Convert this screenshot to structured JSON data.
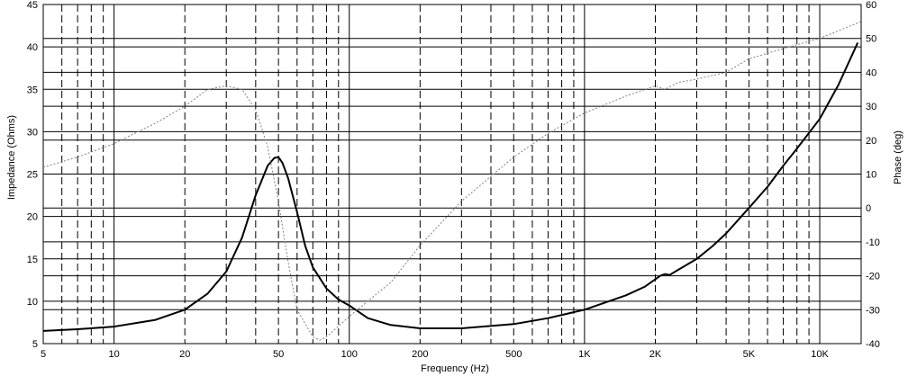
{
  "chart_data": {
    "type": "line",
    "title": "",
    "xlabel": "Frequency (Hz)",
    "ylabel": "Impedance (Ohms)",
    "y2label": "Phase (deg)",
    "x_scale": "log",
    "xlim": [
      5,
      15000
    ],
    "ylim": [
      5,
      45
    ],
    "y2lim": [
      -40,
      60
    ],
    "grid": true,
    "x_tick_labels": [
      "5",
      "10",
      "20",
      "50",
      "100",
      "200",
      "500",
      "1K",
      "2K",
      "5K",
      "10K"
    ],
    "x_ticks": [
      5,
      10,
      20,
      50,
      100,
      200,
      500,
      1000,
      2000,
      5000,
      10000
    ],
    "y_ticks": [
      5,
      10,
      15,
      20,
      25,
      30,
      35,
      40,
      45
    ],
    "y2_ticks": [
      -40,
      -30,
      -20,
      -10,
      0,
      10,
      20,
      30,
      40,
      50,
      60
    ],
    "series": [
      {
        "axis": "left",
        "style": "solid",
        "color": "#000000",
        "x": [
          5,
          7,
          10,
          15,
          20,
          25,
          30,
          35,
          40,
          45,
          48,
          50,
          52,
          55,
          60,
          65,
          70,
          80,
          90,
          100,
          120,
          150,
          200,
          300,
          500,
          700,
          1000,
          1500,
          1800,
          2100,
          2200,
          2300,
          2500,
          3000,
          3500,
          4000,
          5000,
          6000,
          7000,
          8000,
          10000,
          12000,
          14500
        ],
        "y": [
          6.5,
          6.7,
          7.0,
          7.8,
          9.0,
          10.9,
          13.5,
          17.5,
          22.5,
          26.0,
          26.9,
          27.0,
          26.3,
          24.5,
          20.5,
          16.5,
          14.0,
          11.5,
          10.2,
          9.5,
          8.0,
          7.2,
          6.8,
          6.8,
          7.3,
          8.0,
          9.0,
          10.7,
          11.7,
          13.0,
          13.2,
          13.1,
          13.7,
          15.0,
          16.5,
          18.0,
          21.0,
          23.5,
          26.0,
          28.0,
          31.5,
          35.5,
          40.5
        ]
      },
      {
        "axis": "right",
        "style": "dotted",
        "color": "#808080",
        "x": [
          5,
          7,
          10,
          15,
          20,
          25,
          30,
          35,
          40,
          45,
          50,
          55,
          60,
          70,
          75,
          80,
          100,
          150,
          200,
          300,
          500,
          700,
          1000,
          1500,
          2000,
          2200,
          2500,
          3000,
          4000,
          5000,
          7000,
          10000,
          15000
        ],
        "y": [
          12,
          15,
          19,
          25,
          30,
          35,
          36,
          35,
          29,
          18,
          2,
          -16,
          -30,
          -38,
          -39,
          -38,
          -32,
          -22,
          -11,
          2,
          15,
          22,
          28,
          33,
          36,
          35,
          37,
          38,
          40,
          44,
          47,
          50,
          55
        ]
      }
    ]
  }
}
